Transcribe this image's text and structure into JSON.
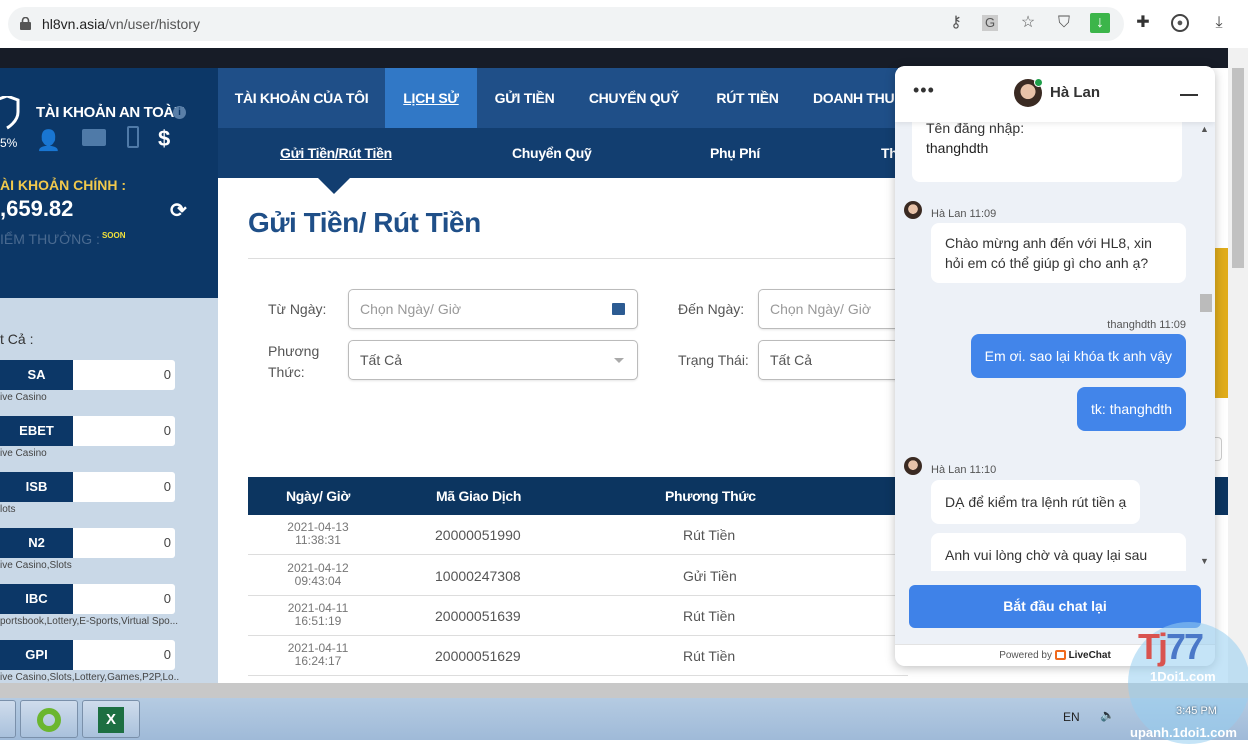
{
  "browser": {
    "url_domain": "hl8vn.asia",
    "url_path": "/vn/user/history",
    "toolbar_icons": [
      "key-icon",
      "translate-icon",
      "star-icon",
      "shield-icon",
      "download-extension-icon",
      "puzzle-icon",
      "profile-icon",
      "download-icon"
    ]
  },
  "sidebar": {
    "security_title": "TÀI KHOẢN AN TOÀN",
    "security_percent": "5%",
    "main_account_label": "ÀI KHOẢN CHÍNH :",
    "balance": ",659.82",
    "points_label": "IỂM THƯỞNG :",
    "soon_badge": "SOON",
    "all_label": "t Cả :",
    "products": [
      {
        "name": "SA",
        "value": "0",
        "category": "ive Casino"
      },
      {
        "name": "EBET",
        "value": "0",
        "category": "ive Casino"
      },
      {
        "name": "ISB",
        "value": "0",
        "category": "lots"
      },
      {
        "name": "N2",
        "value": "0",
        "category": "ive Casino,Slots"
      },
      {
        "name": "IBC",
        "value": "0",
        "category": "portsbook,Lottery,E-Sports,Virtual Spo..."
      },
      {
        "name": "GPI",
        "value": "0",
        "category": "ive Casino,Slots,Lottery,Games,P2P,Lo..."
      }
    ]
  },
  "nav": {
    "items": [
      "TÀI KHOẢN CỦA TÔI",
      "LỊCH SỬ",
      "GỬI TIỀN",
      "CHUYỂN QUỸ",
      "RÚT TIỀN",
      "DOANH THU"
    ],
    "active": "LỊCH SỬ",
    "sub_items": [
      "Gửi Tiền/Rút Tiền",
      "Chuyển Quỹ",
      "Phụ Phí",
      "Th"
    ]
  },
  "main": {
    "title": "Gửi Tiền/ Rút Tiền",
    "form": {
      "from_label": "Từ Ngày:",
      "from_placeholder": "Chọn Ngày/ Giờ",
      "to_label": "Đến Ngày:",
      "to_placeholder": "Chọn Ngày/ Giờ",
      "method_label_1": "Phương",
      "method_label_2": "Thức:",
      "method_value": "Tất Cả",
      "status_label": "Trạng Thái:",
      "status_value": "Tất Cả"
    },
    "table": {
      "headers": [
        "Ngày/ Giờ",
        "Mã Giao Dịch",
        "Phương Thức"
      ],
      "rows": [
        {
          "date": "2021-04-13",
          "time": "11:38:31",
          "code": "20000051990",
          "method": "Rút Tiền"
        },
        {
          "date": "2021-04-12",
          "time": "09:43:04",
          "code": "10000247308",
          "method": "Gửi Tiền"
        },
        {
          "date": "2021-04-11",
          "time": "16:51:19",
          "code": "20000051639",
          "method": "Rút Tiền"
        },
        {
          "date": "2021-04-11",
          "time": "16:24:17",
          "code": "20000051629",
          "method": "Rút Tiền"
        }
      ]
    }
  },
  "chat": {
    "agent_name": "Hà Lan",
    "messages": [
      {
        "from": "user-card",
        "text_1": "Tên đăng nhập:",
        "text_2": "thanghdth"
      },
      {
        "from": "agent",
        "meta": "Hà Lan 11:09",
        "text": "Chào mừng anh đến với HL8, xin hỏi em có thể giúp gì cho anh ạ?"
      },
      {
        "from": "user",
        "meta": "thanghdth 11:09",
        "text": "Em ơi. sao lại khóa tk anh vậy"
      },
      {
        "from": "user",
        "text": "tk: thanghdth"
      },
      {
        "from": "agent",
        "meta": "Hà Lan 11:10",
        "text": "DẠ để kiểm tra lệnh rút tiền ạ"
      },
      {
        "from": "agent",
        "text": "Anh vui lòng chờ và quay lại sau"
      }
    ],
    "restart_button": "Bắt đầu chat lại",
    "powered_by": "Powered by",
    "brand": "LiveChat"
  },
  "taskbar": {
    "language": "EN",
    "clock": "3:45 PM"
  },
  "watermark": {
    "text": "Tj77",
    "sub1": "1Doi1.com",
    "sub2": "upanh.1doi1.com"
  },
  "colors": {
    "navy": "#0c3767",
    "nav": "#1f4f88",
    "active_tab": "#3178c6",
    "chat_blue": "#4285ea",
    "gold": "#f2c94c"
  }
}
